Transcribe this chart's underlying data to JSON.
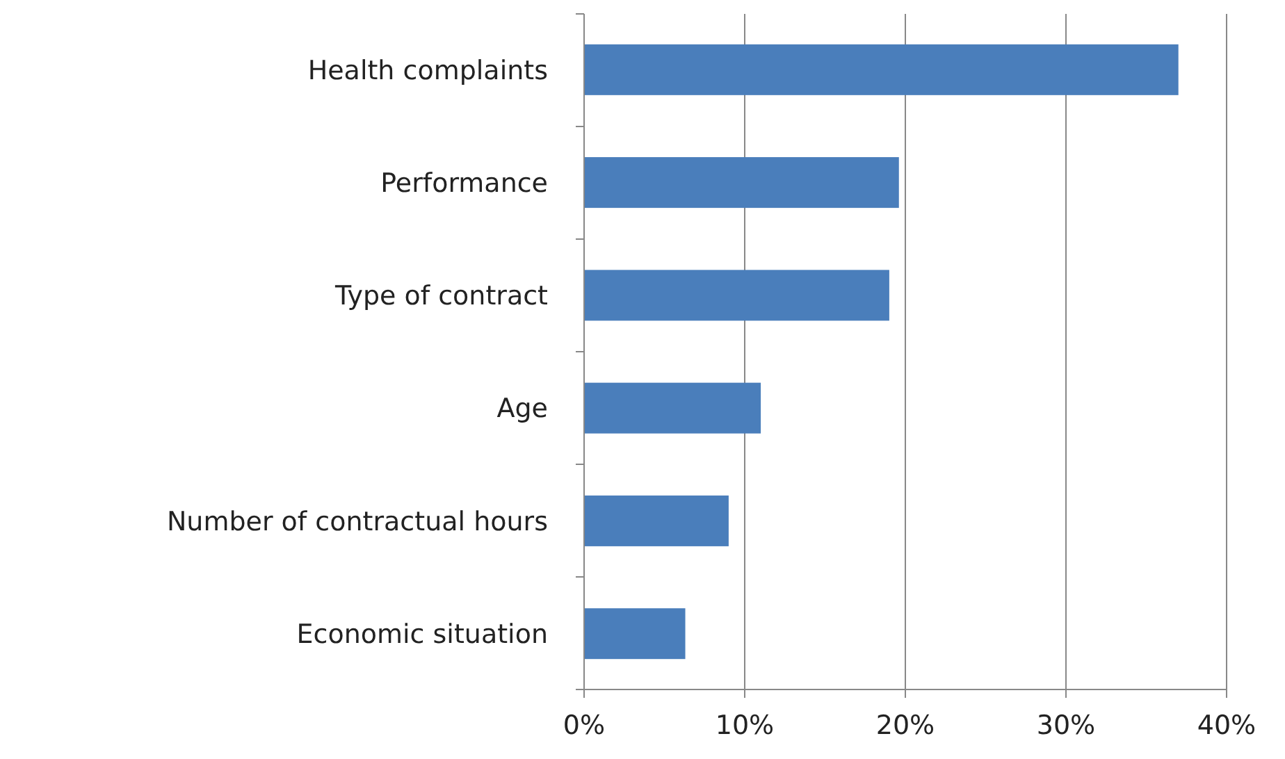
{
  "chart_data": {
    "type": "bar",
    "orientation": "horizontal",
    "categories": [
      "Health complaints",
      "Performance",
      "Type of contract",
      "Age",
      "Number of contractual hours",
      "Economic situation"
    ],
    "values": [
      37,
      19.6,
      19,
      11,
      9,
      6.3
    ],
    "color": "#4a7ebb",
    "xlim": [
      0,
      40
    ],
    "xticks": [
      {
        "value": 0,
        "label": "0%"
      },
      {
        "value": 10,
        "label": "10%"
      },
      {
        "value": 20,
        "label": "20%"
      },
      {
        "value": 30,
        "label": "30%"
      },
      {
        "value": 40,
        "label": "40%"
      }
    ],
    "grid": "x"
  }
}
